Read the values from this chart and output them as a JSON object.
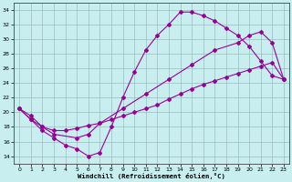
{
  "xlabel": "Windchill (Refroidissement éolien,°C)",
  "bg_color": "#c8eef0",
  "line_color": "#990099",
  "grid_color": "#9bbcbe",
  "xlim_min": -0.5,
  "xlim_max": 23.5,
  "ylim_min": 13,
  "ylim_max": 35,
  "yticks": [
    14,
    16,
    18,
    20,
    22,
    24,
    26,
    28,
    30,
    32,
    34
  ],
  "xticks": [
    0,
    1,
    2,
    3,
    4,
    5,
    6,
    7,
    8,
    9,
    10,
    11,
    12,
    13,
    14,
    15,
    16,
    17,
    18,
    19,
    20,
    21,
    22,
    23
  ],
  "line1_x": [
    0,
    1,
    2,
    3,
    4,
    5,
    6,
    7,
    8,
    9,
    10,
    11,
    12,
    13,
    14,
    15,
    16,
    17,
    18,
    19,
    20,
    21,
    22,
    23
  ],
  "line1_y": [
    20.5,
    19.0,
    17.5,
    16.5,
    15.5,
    15.0,
    14.0,
    14.5,
    18.0,
    22.0,
    25.5,
    28.5,
    30.5,
    32.0,
    33.7,
    33.7,
    33.2,
    32.5,
    31.5,
    30.5,
    29.0,
    27.0,
    25.0,
    24.5
  ],
  "line2_x": [
    0,
    1,
    2,
    3,
    5,
    6,
    7,
    9,
    11,
    13,
    15,
    17,
    19,
    20,
    21,
    22,
    23
  ],
  "line2_y": [
    20.5,
    19.5,
    18.0,
    17.0,
    16.5,
    17.0,
    18.5,
    20.5,
    22.5,
    24.5,
    26.5,
    28.5,
    29.5,
    30.5,
    31.0,
    29.5,
    24.5
  ],
  "line3_x": [
    0,
    1,
    2,
    3,
    4,
    5,
    6,
    7,
    8,
    9,
    10,
    11,
    12,
    13,
    14,
    15,
    16,
    17,
    18,
    19,
    20,
    21,
    22,
    23
  ],
  "line3_y": [
    20.5,
    19.0,
    18.0,
    17.5,
    17.5,
    17.8,
    18.2,
    18.5,
    19.0,
    19.5,
    20.0,
    20.5,
    21.0,
    21.8,
    22.5,
    23.2,
    23.8,
    24.3,
    24.8,
    25.3,
    25.8,
    26.3,
    26.8,
    24.5
  ]
}
